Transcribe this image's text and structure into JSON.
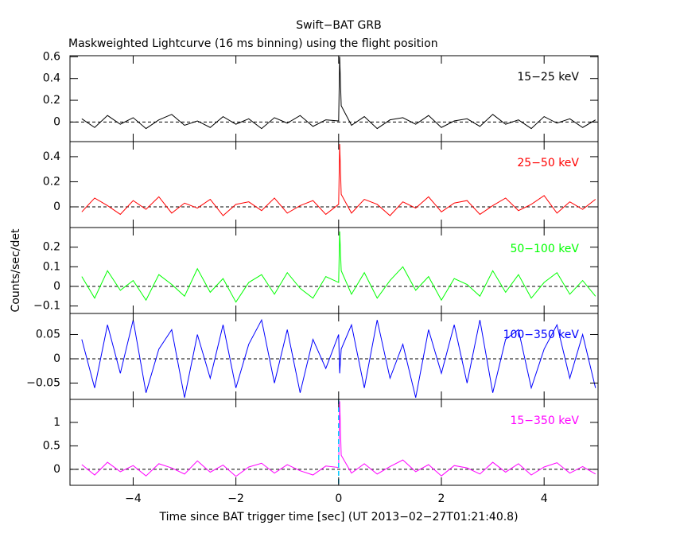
{
  "figure": {
    "title": "Swift−BAT GRB",
    "subtitle": "Maskweighted Lightcurve (16 ms binning) using the flight position",
    "y_label": "Counts/sec/det",
    "x_label": "Time since BAT trigger time [sec] (UT 2013−02−27T01:21:40.8)",
    "xlim": [
      -5.23,
      5.05
    ],
    "xticks": [
      {
        "value": -4,
        "label": "−4"
      },
      {
        "value": -2,
        "label": "−2"
      },
      0,
      2,
      4
    ]
  },
  "chart_data": [
    {
      "type": "line",
      "name": "15−25 keV",
      "color": "#000000",
      "ylim": [
        -0.18,
        0.61
      ],
      "yticks": [
        0,
        0.2,
        0.4,
        0.6
      ],
      "x": [
        -5,
        -4.75,
        -4.5,
        -4.25,
        -4,
        -3.75,
        -3.5,
        -3.25,
        -3,
        -2.75,
        -2.5,
        -2.25,
        -2,
        -1.75,
        -1.5,
        -1.25,
        -1,
        -0.75,
        -0.5,
        -0.25,
        0,
        0.02,
        0.05,
        0.25,
        0.5,
        0.75,
        1,
        1.25,
        1.5,
        1.75,
        2,
        2.25,
        2.5,
        2.75,
        3,
        3.25,
        3.5,
        3.75,
        4,
        4.25,
        4.5,
        4.75,
        5
      ],
      "values": [
        0.03,
        -0.05,
        0.06,
        -0.02,
        0.04,
        -0.06,
        0.02,
        0.07,
        -0.03,
        0.01,
        -0.05,
        0.05,
        -0.02,
        0.03,
        -0.06,
        0.04,
        -0.01,
        0.06,
        -0.04,
        0.02,
        0.01,
        0.6,
        0.15,
        -0.03,
        0.05,
        -0.06,
        0.02,
        0.04,
        -0.02,
        0.06,
        -0.05,
        0.01,
        0.03,
        -0.04,
        0.07,
        -0.02,
        0.02,
        -0.06,
        0.05,
        -0.01,
        0.03,
        -0.05,
        0.02
      ]
    },
    {
      "type": "line",
      "name": "25−50 keV",
      "color": "#ff0000",
      "ylim": [
        -0.165,
        0.52
      ],
      "yticks": [
        0,
        0.2,
        0.4
      ],
      "x": [
        -5,
        -4.75,
        -4.5,
        -4.25,
        -4,
        -3.75,
        -3.5,
        -3.25,
        -3,
        -2.75,
        -2.5,
        -2.25,
        -2,
        -1.75,
        -1.5,
        -1.25,
        -1,
        -0.75,
        -0.5,
        -0.25,
        0,
        0.02,
        0.05,
        0.25,
        0.5,
        0.75,
        1,
        1.25,
        1.5,
        1.75,
        2,
        2.25,
        2.5,
        2.75,
        3,
        3.25,
        3.5,
        3.75,
        4,
        4.25,
        4.5,
        4.75,
        5
      ],
      "values": [
        -0.04,
        0.07,
        0.01,
        -0.06,
        0.05,
        -0.02,
        0.08,
        -0.05,
        0.03,
        -0.01,
        0.06,
        -0.07,
        0.02,
        0.04,
        -0.03,
        0.07,
        -0.05,
        0.01,
        0.05,
        -0.06,
        0.02,
        0.5,
        0.1,
        -0.05,
        0.06,
        0.02,
        -0.07,
        0.04,
        -0.01,
        0.08,
        -0.04,
        0.03,
        0.05,
        -0.06,
        0.01,
        0.07,
        -0.03,
        0.02,
        0.09,
        -0.05,
        0.04,
        -0.02,
        0.06
      ]
    },
    {
      "type": "line",
      "name": "50−100 keV",
      "color": "#00ff00",
      "ylim": [
        -0.138,
        0.3
      ],
      "yticks": [
        {
          "value": -0.1,
          "label": "−0.1"
        },
        0,
        0.1,
        0.2
      ],
      "x": [
        -5,
        -4.75,
        -4.5,
        -4.25,
        -4,
        -3.75,
        -3.5,
        -3.25,
        -3,
        -2.75,
        -2.5,
        -2.25,
        -2,
        -1.75,
        -1.5,
        -1.25,
        -1,
        -0.75,
        -0.5,
        -0.25,
        0,
        0.02,
        0.05,
        0.25,
        0.5,
        0.75,
        1,
        1.25,
        1.5,
        1.75,
        2,
        2.25,
        2.5,
        2.75,
        3,
        3.25,
        3.5,
        3.75,
        4,
        4.25,
        4.5,
        4.75,
        5
      ],
      "values": [
        0.05,
        -0.06,
        0.08,
        -0.02,
        0.03,
        -0.07,
        0.06,
        0.01,
        -0.05,
        0.09,
        -0.03,
        0.04,
        -0.08,
        0.02,
        0.06,
        -0.04,
        0.07,
        -0.01,
        -0.06,
        0.05,
        0.02,
        0.28,
        0.08,
        -0.04,
        0.07,
        -0.06,
        0.03,
        0.1,
        -0.02,
        0.05,
        -0.07,
        0.04,
        0.01,
        -0.05,
        0.08,
        -0.03,
        0.06,
        -0.06,
        0.02,
        0.07,
        -0.04,
        0.03,
        -0.05
      ]
    },
    {
      "type": "line",
      "name": "100−350 keV",
      "color": "#0000ff",
      "ylim": [
        -0.0836,
        0.0934
      ],
      "yticks": [
        {
          "value": -0.05,
          "label": "−0.05"
        },
        0,
        0.05
      ],
      "x": [
        -5,
        -4.75,
        -4.5,
        -4.25,
        -4,
        -3.75,
        -3.5,
        -3.25,
        -3,
        -2.75,
        -2.5,
        -2.25,
        -2,
        -1.75,
        -1.5,
        -1.25,
        -1,
        -0.75,
        -0.5,
        -0.25,
        0,
        0.02,
        0.05,
        0.25,
        0.5,
        0.75,
        1,
        1.25,
        1.5,
        1.75,
        2,
        2.25,
        2.5,
        2.75,
        3,
        3.25,
        3.5,
        3.75,
        4,
        4.25,
        4.5,
        4.75,
        5
      ],
      "values": [
        0.04,
        -0.06,
        0.07,
        -0.03,
        0.08,
        -0.07,
        0.02,
        0.06,
        -0.08,
        0.05,
        -0.04,
        0.07,
        -0.06,
        0.03,
        0.08,
        -0.05,
        0.06,
        -0.07,
        0.04,
        -0.02,
        0.05,
        -0.03,
        0.02,
        0.07,
        -0.06,
        0.08,
        -0.04,
        0.03,
        -0.08,
        0.06,
        -0.03,
        0.07,
        -0.05,
        0.08,
        -0.07,
        0.04,
        0.06,
        -0.06,
        0.02,
        0.07,
        -0.04,
        0.05,
        -0.06
      ]
    },
    {
      "type": "line",
      "name": "15−350 keV",
      "color": "#ff00ff",
      "ylim": [
        -0.34,
        1.49
      ],
      "yticks": [
        0,
        0.5,
        1
      ],
      "vline": 0,
      "vline_color": "#00c8ff",
      "x": [
        -5,
        -4.75,
        -4.5,
        -4.25,
        -4,
        -3.75,
        -3.5,
        -3.25,
        -3,
        -2.75,
        -2.5,
        -2.25,
        -2,
        -1.75,
        -1.5,
        -1.25,
        -1,
        -0.75,
        -0.5,
        -0.25,
        0,
        0.02,
        0.05,
        0.25,
        0.5,
        0.75,
        1,
        1.25,
        1.5,
        1.75,
        2,
        2.25,
        2.5,
        2.75,
        3,
        3.25,
        3.5,
        3.75,
        4,
        4.25,
        4.5,
        4.75,
        5
      ],
      "values": [
        0.1,
        -0.12,
        0.15,
        -0.05,
        0.08,
        -0.14,
        0.12,
        0.03,
        -0.1,
        0.18,
        -0.06,
        0.09,
        -0.15,
        0.05,
        0.13,
        -0.08,
        0.1,
        -0.03,
        -0.12,
        0.07,
        0.04,
        1.45,
        0.3,
        -0.08,
        0.12,
        -0.1,
        0.06,
        0.2,
        -0.05,
        0.1,
        -0.14,
        0.08,
        0.03,
        -0.1,
        0.15,
        -0.06,
        0.12,
        -0.12,
        0.05,
        0.14,
        -0.08,
        0.06,
        -0.1
      ]
    }
  ]
}
